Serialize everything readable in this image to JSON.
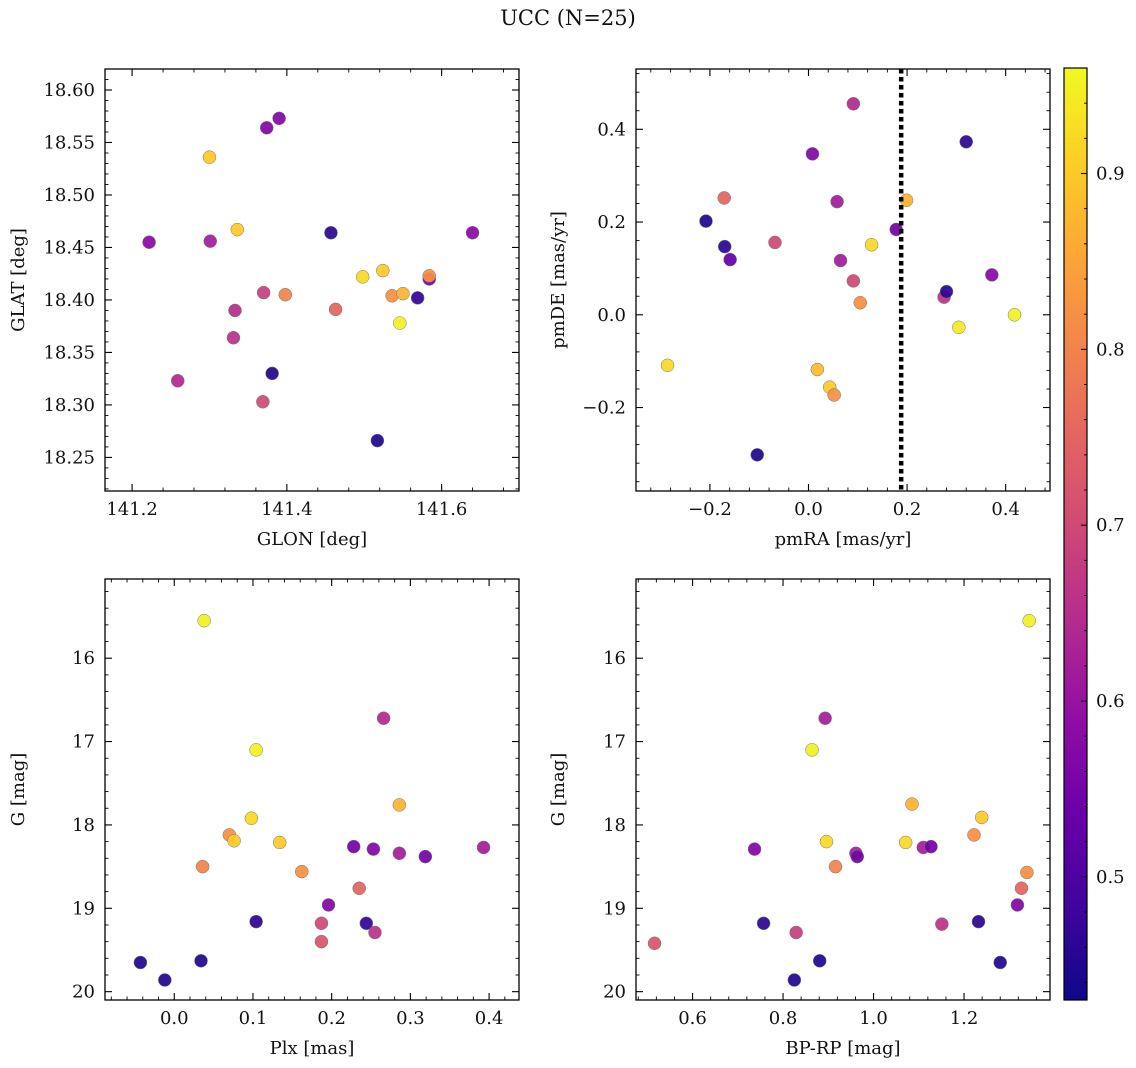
{
  "title": "UCC (N=25)",
  "colorbar": {
    "range": [
      0.43,
      0.96
    ],
    "ticks": [
      0.5,
      0.6,
      0.7,
      0.8,
      0.9
    ],
    "tick_labels": [
      "0.5",
      "0.6",
      "0.7",
      "0.8",
      "0.9"
    ],
    "colormap": "plasma"
  },
  "vline": {
    "panel": 2,
    "x": 0.188,
    "style": "dotted",
    "color": "#000000"
  },
  "chart_data": [
    {
      "type": "scatter",
      "xlabel": "GLON [deg]",
      "ylabel": "GLAT [deg]",
      "xlim": [
        141.165,
        141.7
      ],
      "ylim": [
        18.218,
        18.62
      ],
      "y_inverted": false,
      "xticks": [
        141.2,
        141.4,
        141.6
      ],
      "xtick_labels": [
        "141.2",
        "141.4",
        "141.6"
      ],
      "yticks": [
        18.25,
        18.3,
        18.35,
        18.4,
        18.45,
        18.5,
        18.55,
        18.6
      ],
      "ytick_labels": [
        "18.25",
        "18.30",
        "18.35",
        "18.40",
        "18.45",
        "18.50",
        "18.55",
        "18.60"
      ],
      "points": [
        {
          "x": 141.222,
          "y": 18.455,
          "c": 0.58
        },
        {
          "x": 141.259,
          "y": 18.323,
          "c": 0.64
        },
        {
          "x": 141.3,
          "y": 18.536,
          "c": 0.9
        },
        {
          "x": 141.301,
          "y": 18.456,
          "c": 0.62
        },
        {
          "x": 141.331,
          "y": 18.364,
          "c": 0.66
        },
        {
          "x": 141.333,
          "y": 18.39,
          "c": 0.65
        },
        {
          "x": 141.336,
          "y": 18.467,
          "c": 0.9
        },
        {
          "x": 141.369,
          "y": 18.303,
          "c": 0.7
        },
        {
          "x": 141.37,
          "y": 18.407,
          "c": 0.68
        },
        {
          "x": 141.374,
          "y": 18.564,
          "c": 0.57
        },
        {
          "x": 141.381,
          "y": 18.33,
          "c": 0.45
        },
        {
          "x": 141.39,
          "y": 18.573,
          "c": 0.57
        },
        {
          "x": 141.398,
          "y": 18.405,
          "c": 0.8
        },
        {
          "x": 141.457,
          "y": 18.464,
          "c": 0.46
        },
        {
          "x": 141.463,
          "y": 18.391,
          "c": 0.75
        },
        {
          "x": 141.498,
          "y": 18.422,
          "c": 0.92
        },
        {
          "x": 141.517,
          "y": 18.266,
          "c": 0.45
        },
        {
          "x": 141.524,
          "y": 18.428,
          "c": 0.9
        },
        {
          "x": 141.536,
          "y": 18.404,
          "c": 0.82
        },
        {
          "x": 141.546,
          "y": 18.378,
          "c": 0.95
        },
        {
          "x": 141.55,
          "y": 18.406,
          "c": 0.87
        },
        {
          "x": 141.569,
          "y": 18.402,
          "c": 0.47
        },
        {
          "x": 141.584,
          "y": 18.42,
          "c": 0.55
        },
        {
          "x": 141.584,
          "y": 18.423,
          "c": 0.82
        },
        {
          "x": 141.64,
          "y": 18.464,
          "c": 0.58
        }
      ]
    },
    {
      "type": "scatter",
      "xlabel": "pmRA [mas/yr]",
      "ylabel": "pmDE [mas/yr]",
      "xlim": [
        -0.35,
        0.49
      ],
      "ylim": [
        -0.38,
        0.53
      ],
      "y_inverted": false,
      "xticks": [
        -0.2,
        0.0,
        0.2,
        0.4
      ],
      "xtick_labels": [
        "−0.2",
        "0.0",
        "0.2",
        "0.4"
      ],
      "yticks": [
        -0.2,
        0.0,
        0.2,
        0.4
      ],
      "ytick_labels": [
        "−0.2",
        "0.0",
        "0.2",
        "0.4"
      ],
      "points": [
        {
          "x": -0.286,
          "y": -0.109,
          "c": 0.92
        },
        {
          "x": -0.208,
          "y": 0.202,
          "c": 0.45
        },
        {
          "x": -0.171,
          "y": 0.252,
          "c": 0.75
        },
        {
          "x": -0.17,
          "y": 0.147,
          "c": 0.46
        },
        {
          "x": -0.159,
          "y": 0.119,
          "c": 0.53
        },
        {
          "x": -0.104,
          "y": -0.302,
          "c": 0.45
        },
        {
          "x": -0.068,
          "y": 0.156,
          "c": 0.7
        },
        {
          "x": 0.008,
          "y": 0.347,
          "c": 0.57
        },
        {
          "x": 0.018,
          "y": -0.118,
          "c": 0.88
        },
        {
          "x": 0.043,
          "y": -0.156,
          "c": 0.9
        },
        {
          "x": 0.052,
          "y": -0.173,
          "c": 0.82
        },
        {
          "x": 0.058,
          "y": 0.244,
          "c": 0.62
        },
        {
          "x": 0.065,
          "y": 0.117,
          "c": 0.62
        },
        {
          "x": 0.091,
          "y": 0.073,
          "c": 0.7
        },
        {
          "x": 0.091,
          "y": 0.455,
          "c": 0.64
        },
        {
          "x": 0.105,
          "y": 0.026,
          "c": 0.82
        },
        {
          "x": 0.128,
          "y": 0.151,
          "c": 0.92
        },
        {
          "x": 0.178,
          "y": 0.184,
          "c": 0.55
        },
        {
          "x": 0.199,
          "y": 0.247,
          "c": 0.87
        },
        {
          "x": 0.275,
          "y": 0.038,
          "c": 0.66
        },
        {
          "x": 0.28,
          "y": 0.05,
          "c": 0.46
        },
        {
          "x": 0.305,
          "y": -0.027,
          "c": 0.94
        },
        {
          "x": 0.32,
          "y": 0.373,
          "c": 0.46
        },
        {
          "x": 0.372,
          "y": 0.086,
          "c": 0.58
        },
        {
          "x": 0.418,
          "y": 0.0,
          "c": 0.95
        }
      ]
    },
    {
      "type": "scatter",
      "xlabel": "Plx [mas]",
      "ylabel": "G [mag]",
      "xlim": [
        -0.088,
        0.438
      ],
      "ylim": [
        20.1,
        15.05
      ],
      "y_inverted": true,
      "xticks": [
        0.0,
        0.1,
        0.2,
        0.3,
        0.4
      ],
      "xtick_labels": [
        "0.0",
        "0.1",
        "0.2",
        "0.3",
        "0.4"
      ],
      "yticks": [
        16,
        17,
        18,
        19,
        20
      ],
      "ytick_labels": [
        "16",
        "17",
        "18",
        "19",
        "20"
      ],
      "points": [
        {
          "x": -0.043,
          "y": 19.65,
          "c": 0.45
        },
        {
          "x": -0.012,
          "y": 19.86,
          "c": 0.45
        },
        {
          "x": 0.034,
          "y": 19.63,
          "c": 0.45
        },
        {
          "x": 0.036,
          "y": 18.5,
          "c": 0.8
        },
        {
          "x": 0.038,
          "y": 15.55,
          "c": 0.95
        },
        {
          "x": 0.07,
          "y": 18.12,
          "c": 0.82
        },
        {
          "x": 0.076,
          "y": 18.19,
          "c": 0.9
        },
        {
          "x": 0.098,
          "y": 17.92,
          "c": 0.92
        },
        {
          "x": 0.104,
          "y": 19.16,
          "c": 0.46
        },
        {
          "x": 0.104,
          "y": 17.1,
          "c": 0.95
        },
        {
          "x": 0.134,
          "y": 18.21,
          "c": 0.9
        },
        {
          "x": 0.162,
          "y": 18.56,
          "c": 0.82
        },
        {
          "x": 0.187,
          "y": 19.18,
          "c": 0.7
        },
        {
          "x": 0.187,
          "y": 19.4,
          "c": 0.72
        },
        {
          "x": 0.196,
          "y": 18.96,
          "c": 0.57
        },
        {
          "x": 0.228,
          "y": 18.26,
          "c": 0.55
        },
        {
          "x": 0.235,
          "y": 18.76,
          "c": 0.75
        },
        {
          "x": 0.244,
          "y": 19.18,
          "c": 0.47
        },
        {
          "x": 0.253,
          "y": 18.29,
          "c": 0.57
        },
        {
          "x": 0.255,
          "y": 19.29,
          "c": 0.66
        },
        {
          "x": 0.266,
          "y": 16.72,
          "c": 0.64
        },
        {
          "x": 0.286,
          "y": 17.76,
          "c": 0.87
        },
        {
          "x": 0.286,
          "y": 18.34,
          "c": 0.62
        },
        {
          "x": 0.319,
          "y": 18.38,
          "c": 0.55
        },
        {
          "x": 0.393,
          "y": 18.27,
          "c": 0.62
        }
      ]
    },
    {
      "type": "scatter",
      "xlabel": "BP-RP [mag]",
      "ylabel": "G [mag]",
      "xlim": [
        0.475,
        1.39
      ],
      "ylim": [
        20.1,
        15.05
      ],
      "y_inverted": true,
      "xticks": [
        0.6,
        0.8,
        1.0,
        1.2
      ],
      "xtick_labels": [
        "0.6",
        "0.8",
        "1.0",
        "1.2"
      ],
      "yticks": [
        16,
        17,
        18,
        19,
        20
      ],
      "ytick_labels": [
        "16",
        "17",
        "18",
        "19",
        "20"
      ],
      "points": [
        {
          "x": 0.516,
          "y": 19.42,
          "c": 0.72
        },
        {
          "x": 0.737,
          "y": 18.29,
          "c": 0.57
        },
        {
          "x": 0.757,
          "y": 19.18,
          "c": 0.46
        },
        {
          "x": 0.825,
          "y": 19.86,
          "c": 0.45
        },
        {
          "x": 0.829,
          "y": 19.29,
          "c": 0.68
        },
        {
          "x": 0.864,
          "y": 17.1,
          "c": 0.95
        },
        {
          "x": 0.881,
          "y": 19.63,
          "c": 0.45
        },
        {
          "x": 0.893,
          "y": 16.72,
          "c": 0.62
        },
        {
          "x": 0.896,
          "y": 18.2,
          "c": 0.92
        },
        {
          "x": 0.916,
          "y": 18.5,
          "c": 0.8
        },
        {
          "x": 0.961,
          "y": 18.34,
          "c": 0.62
        },
        {
          "x": 0.964,
          "y": 18.38,
          "c": 0.55
        },
        {
          "x": 1.071,
          "y": 18.21,
          "c": 0.92
        },
        {
          "x": 1.085,
          "y": 17.75,
          "c": 0.87
        },
        {
          "x": 1.11,
          "y": 18.27,
          "c": 0.62
        },
        {
          "x": 1.127,
          "y": 18.26,
          "c": 0.55
        },
        {
          "x": 1.151,
          "y": 19.19,
          "c": 0.66
        },
        {
          "x": 1.222,
          "y": 18.12,
          "c": 0.82
        },
        {
          "x": 1.232,
          "y": 19.16,
          "c": 0.46
        },
        {
          "x": 1.239,
          "y": 17.91,
          "c": 0.9
        },
        {
          "x": 1.28,
          "y": 19.65,
          "c": 0.45
        },
        {
          "x": 1.318,
          "y": 18.96,
          "c": 0.57
        },
        {
          "x": 1.327,
          "y": 18.76,
          "c": 0.75
        },
        {
          "x": 1.339,
          "y": 18.57,
          "c": 0.82
        },
        {
          "x": 1.344,
          "y": 15.55,
          "c": 0.95
        }
      ]
    }
  ]
}
